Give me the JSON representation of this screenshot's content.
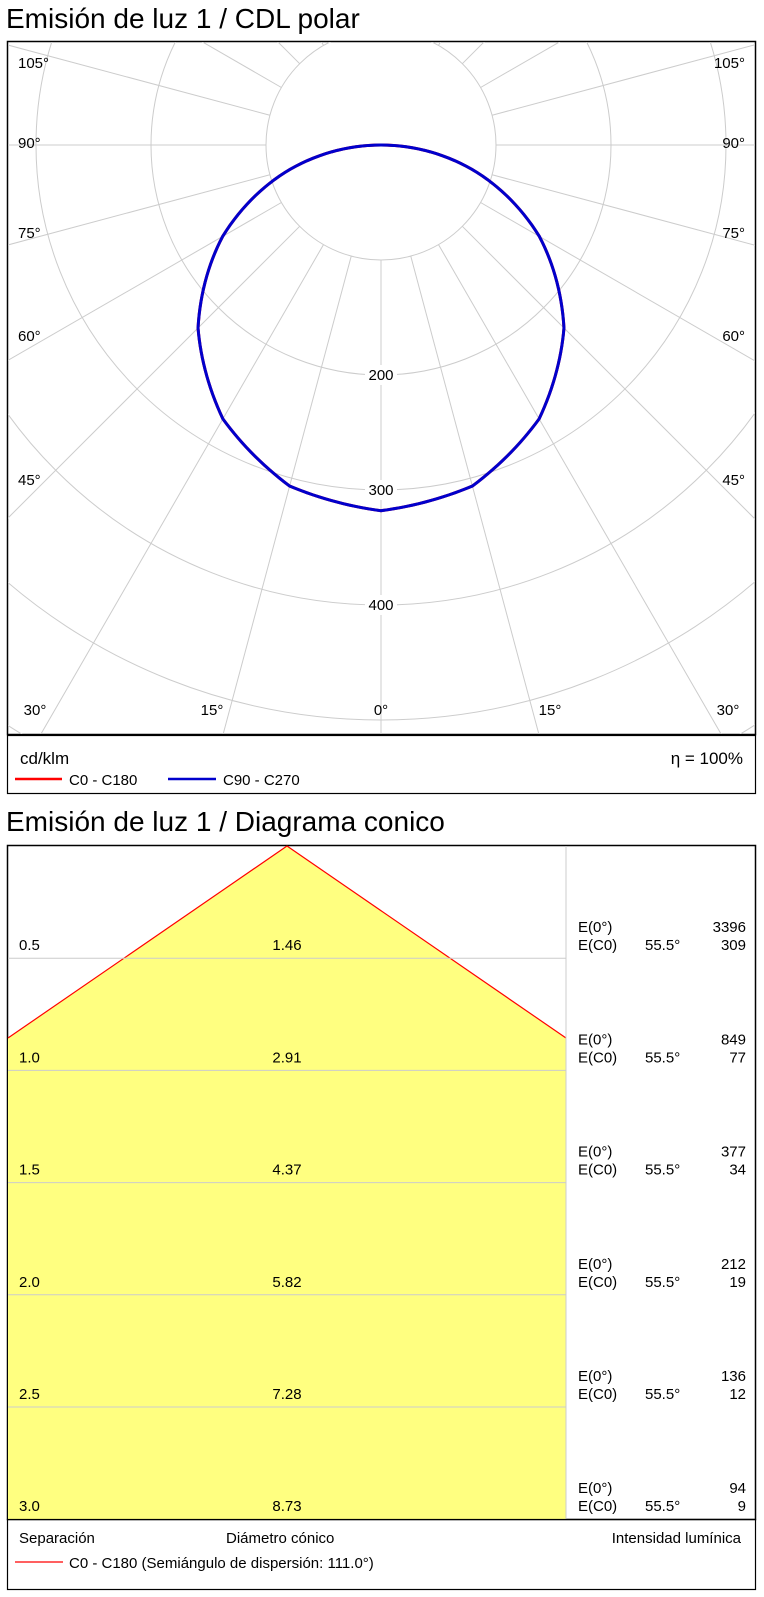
{
  "polar": {
    "title": "Emisión de luz 1 / CDL polar",
    "unit": "cd/klm",
    "efficiency": "η = 100%",
    "legend": [
      {
        "label": "C0 - C180",
        "color": "#ff0000"
      },
      {
        "label": "C90 - C270",
        "color": "#0000cc"
      }
    ]
  },
  "cone": {
    "title": "Emisión de luz 1 / Diagrama conico",
    "col_separation": "Separación",
    "col_diameter": "Diámetro cónico",
    "col_intensity": "Intensidad lumínica",
    "legend_label": "C0 - C180 (Semiángulo de dispersión: 111.0°)",
    "label_e0": "E(0°)",
    "label_ec0": "E(C0)",
    "cone_color": "#ffff80",
    "line_color": "#ff0000"
  },
  "chart_data": [
    {
      "type": "polar",
      "title": "Emisión de luz 1 / CDL polar",
      "unit": "cd/klm",
      "angle_ticks": [
        "105°",
        "90°",
        "75°",
        "60°",
        "45°",
        "30°",
        "15°",
        "0°",
        "15°",
        "30°",
        "45°",
        "60°",
        "75°",
        "90°",
        "105°"
      ],
      "radial_ticks": [
        200,
        300,
        400
      ],
      "series": [
        {
          "name": "C0 - C180",
          "color": "#ff0000",
          "angles": [
            0,
            15,
            30,
            45,
            60,
            75,
            90
          ],
          "values": [
            318,
            307,
            275,
            225,
            159,
            82,
            0
          ]
        },
        {
          "name": "C90 - C270",
          "color": "#0000cc",
          "angles": [
            0,
            15,
            30,
            45,
            60,
            75,
            90
          ],
          "values": [
            318,
            307,
            275,
            225,
            159,
            82,
            0
          ]
        }
      ],
      "efficiency": "η = 100%"
    },
    {
      "type": "table",
      "title": "Emisión de luz 1 / Diagrama conico",
      "columns": [
        "Separación",
        "Diámetro cónico",
        "Intensidad lumínica"
      ],
      "half_angle": "111.0°",
      "rows": [
        {
          "separation": "0.5",
          "diameter": "1.46",
          "e0": "3396",
          "angle": "55.5°",
          "ec0": "309"
        },
        {
          "separation": "1.0",
          "diameter": "2.91",
          "e0": "849",
          "angle": "55.5°",
          "ec0": "77"
        },
        {
          "separation": "1.5",
          "diameter": "4.37",
          "e0": "377",
          "angle": "55.5°",
          "ec0": "34"
        },
        {
          "separation": "2.0",
          "diameter": "5.82",
          "e0": "212",
          "angle": "55.5°",
          "ec0": "19"
        },
        {
          "separation": "2.5",
          "diameter": "7.28",
          "e0": "136",
          "angle": "55.5°",
          "ec0": "12"
        },
        {
          "separation": "3.0",
          "diameter": "8.73",
          "e0": "94",
          "angle": "55.5°",
          "ec0": "9"
        }
      ]
    }
  ]
}
